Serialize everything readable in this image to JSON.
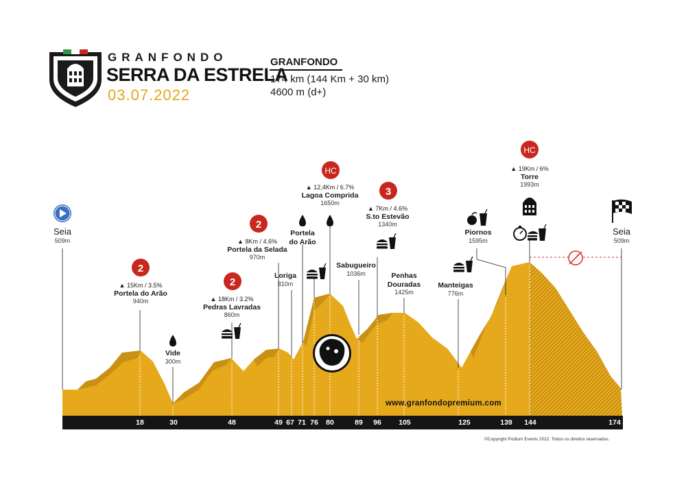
{
  "brand": {
    "prefix": "GRANFONDO",
    "name": "SERRA DA ESTRELA",
    "date": "03.07.2022"
  },
  "route": {
    "title": "GRANFONDO",
    "distance": "174 km (144 Km + 30 km)",
    "climbing": "4600 m (d+)"
  },
  "axis": {
    "km_marks": [
      "18",
      "30",
      "48",
      "49",
      "67",
      "71",
      "76",
      "80",
      "89",
      "96",
      "105",
      "125",
      "139",
      "144",
      "174"
    ]
  },
  "places": [
    {
      "id": "seia-start",
      "name": "Seia",
      "elev": "509m"
    },
    {
      "id": "portela-arao-1",
      "stat": "15Km / 3.5%",
      "name": "Portela do Arão",
      "elev": "940m"
    },
    {
      "id": "vide",
      "name": "Vide",
      "elev": "300m"
    },
    {
      "id": "pedras-lavradas",
      "stat": "18Km / 3.2%",
      "name": "Pedras Lavradas",
      "elev": "860m"
    },
    {
      "id": "portela-selada",
      "stat": "8Km / 4.6%",
      "name": "Portela da Selada",
      "elev": "970m"
    },
    {
      "id": "loriga",
      "name": "Loriga",
      "elev": "810m"
    },
    {
      "id": "portela-arao-2",
      "name": "Portela do Arão"
    },
    {
      "id": "lagoa-comprida",
      "stat": "12,4Km / 6.7%",
      "name": "Lagoa Comprida",
      "elev": "1650m"
    },
    {
      "id": "sabugueiro",
      "name": "Sabugueiro",
      "elev": "1036m"
    },
    {
      "id": "sto-estevao",
      "stat": "7Km / 4.6%",
      "name": "S.to Estevão",
      "elev": "1340m"
    },
    {
      "id": "penhas-douradas",
      "name": "Penhas Douradas",
      "elev": "1425m"
    },
    {
      "id": "manteigas",
      "name": "Manteigas",
      "elev": "776m"
    },
    {
      "id": "piornos",
      "name": "Piornos",
      "elev": "1595m"
    },
    {
      "id": "torre",
      "stat": "19Km / 6%",
      "name": "Torre",
      "elev": "1993m"
    },
    {
      "id": "seia-finish",
      "name": "Seia",
      "elev": "509m"
    }
  ],
  "climb_badges": [
    "2",
    "2",
    "2",
    "HC",
    "3",
    "HC"
  ],
  "website": "www.granfondopremium.com",
  "copyright": "©Copyright Podium Events 2022. Todos os direitos reservados.",
  "colors": {
    "profile_fill": "#e6a91c",
    "profile_dark": "#b07c10",
    "badge_red": "#c8271e",
    "axis_bar": "#151515",
    "start_blue": "#3a6fc2",
    "neutral_line": "#d9302a"
  },
  "icons": [
    "play-icon",
    "chequered-flag-icon",
    "water-drop-icon",
    "food-icon",
    "drink-icon",
    "apple-icon",
    "stopwatch-icon",
    "timer-off-icon",
    "tower-icon",
    "shield-logo-icon"
  ]
}
